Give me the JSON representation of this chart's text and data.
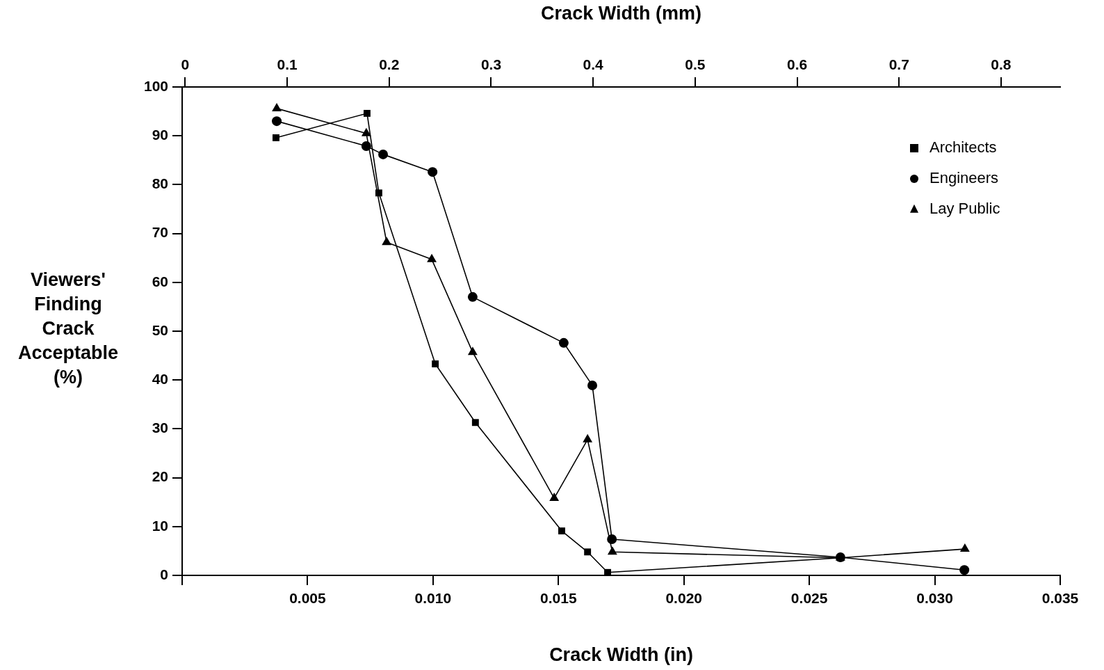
{
  "chart_data": {
    "type": "line",
    "xlabel": "Crack Width (in)",
    "x2label": "Crack Width (mm)",
    "ylabel": "Viewers' Finding Crack Acceptable (%)",
    "xlim": [
      0,
      0.035
    ],
    "xticks": [
      {
        "value": 0,
        "label": null
      },
      0.005,
      {
        "value": 0.01,
        "label": "0.010"
      },
      0.015,
      {
        "value": 0.02,
        "label": "0.020"
      },
      0.025,
      {
        "value": 0.03,
        "label": "0.030"
      },
      0.035
    ],
    "x2lim": [
      -0.003,
      0.858
    ],
    "x2ticks": [
      0,
      0.1,
      0.2,
      0.3,
      0.4,
      0.5,
      0.6,
      0.7,
      0.8
    ],
    "ylim": [
      0,
      100
    ],
    "yticks": [
      0,
      10,
      20,
      30,
      40,
      50,
      60,
      70,
      80,
      90,
      100
    ],
    "grid": false,
    "legend": "top right",
    "line_style": "solid",
    "series": [
      {
        "name": "Architects",
        "color": "#000000",
        "marker": "square",
        "x": [
          0.00374,
          0.00737,
          0.00784,
          0.01009,
          0.01169,
          0.01513,
          0.01616,
          0.01696,
          0.02624
        ],
        "values": [
          89.6,
          94.6,
          78.3,
          43.3,
          31.3,
          9.1,
          4.8,
          0.6,
          3.6
        ]
      },
      {
        "name": "Engineers",
        "color": "#000000",
        "marker": "circle",
        "x": [
          0.00377,
          0.00734,
          0.00801,
          0.00998,
          0.01158,
          0.01521,
          0.01635,
          0.01713,
          0.02624,
          0.03118
        ],
        "values": [
          93.0,
          87.9,
          86.2,
          82.6,
          57.0,
          47.6,
          38.9,
          7.4,
          3.7,
          1.1
        ]
      },
      {
        "name": "Lay Public",
        "color": "#000000",
        "marker": "triangle",
        "x": [
          0.00377,
          0.00734,
          0.00815,
          0.00995,
          0.01158,
          0.01483,
          0.01616,
          0.01715,
          0.02624,
          0.0312
        ],
        "values": [
          95.6,
          90.5,
          68.2,
          64.7,
          45.7,
          15.8,
          27.8,
          4.8,
          3.6,
          5.4
        ]
      }
    ]
  }
}
